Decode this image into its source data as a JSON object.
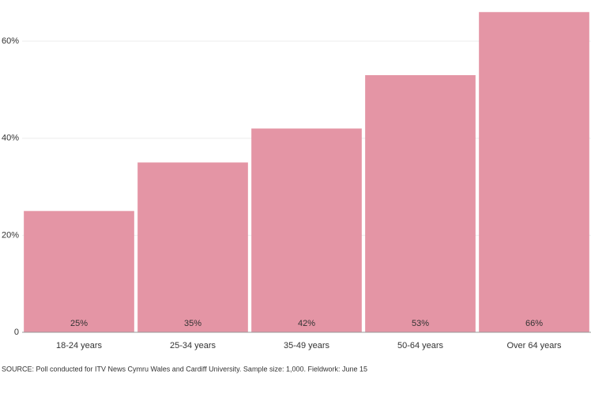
{
  "chart_data": {
    "type": "bar",
    "categories": [
      "18-24 years",
      "25-34 years",
      "35-49 years",
      "50-64 years",
      "Over 64 years"
    ],
    "values": [
      25,
      35,
      42,
      53,
      66
    ],
    "value_labels": [
      "25%",
      "35%",
      "42%",
      "53%",
      "66%"
    ],
    "color": "#e495a5",
    "ylim": [
      0,
      68
    ],
    "yticks": [
      0,
      {
        "value": 20,
        "label": "20%"
      },
      {
        "value": 40,
        "label": "40%"
      },
      {
        "value": 60,
        "label": "60%"
      }
    ],
    "grid": true,
    "source": "SOURCE: Poll conducted for ITV News Cymru Wales and Cardiff University. Sample size: 1,000. Fieldwork: June 15"
  }
}
